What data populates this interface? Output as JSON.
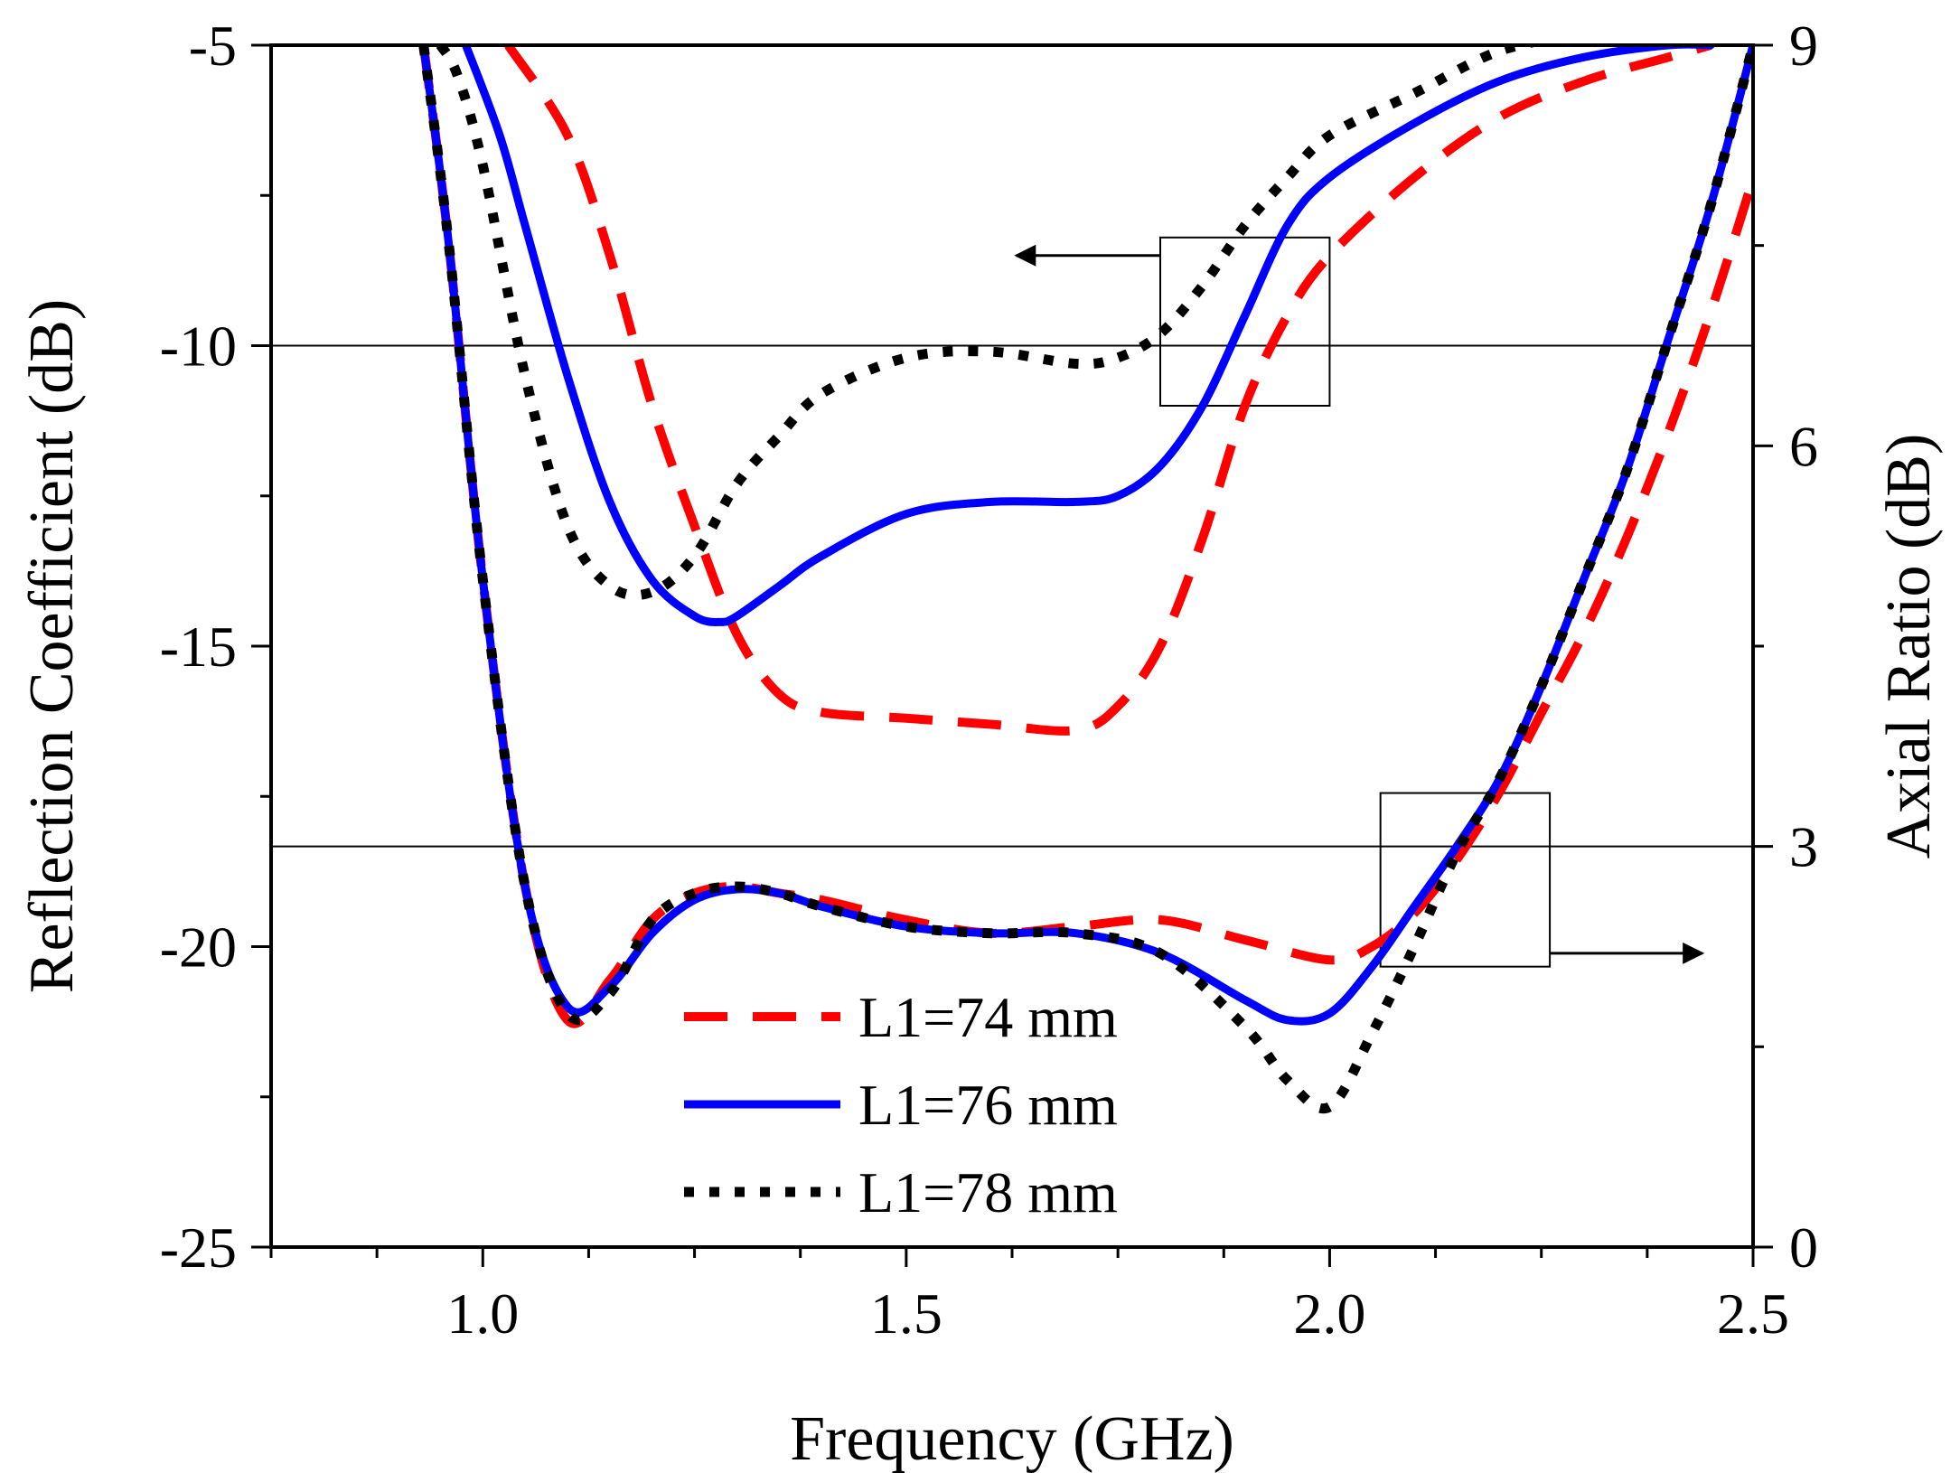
{
  "chart_data": {
    "type": "line",
    "title": "",
    "xlabel": "Frequency (GHz)",
    "ylabel_left": "Reflection Coefficient (dB)",
    "ylabel_right": "Axial Ratio (dB)",
    "xlim": [
      0.75,
      2.5
    ],
    "ylim_left": [
      -25,
      -5
    ],
    "ylim_right": [
      0,
      9
    ],
    "x_ticks": [
      1.0,
      1.5,
      2.0,
      2.5
    ],
    "x_tick_labels": [
      "1.0",
      "1.5",
      "2.0",
      "2.5"
    ],
    "y_left_ticks": [
      -5,
      -10,
      -15,
      -20,
      -25
    ],
    "y_left_tick_labels": [
      "-5",
      "-10",
      "-15",
      "-20",
      "-25"
    ],
    "y_right_ticks": [
      9,
      6,
      3,
      0
    ],
    "y_right_tick_labels": [
      "9",
      "6",
      "3",
      "0"
    ],
    "reference_lines": [
      {
        "axis": "left",
        "value": -10
      },
      {
        "axis": "right",
        "value": 3
      }
    ],
    "legend": {
      "placement": "bottom-center",
      "entries": [
        {
          "label": "L1=74 mm",
          "color": "#ff0000",
          "style": "dashed"
        },
        {
          "label": "L1=76 mm",
          "color": "#0000ff",
          "style": "solid"
        },
        {
          "label": "L1=78 mm",
          "color": "#000000",
          "style": "dotted"
        }
      ]
    },
    "annotations": [
      {
        "type": "box-arrow",
        "target_axis": "left",
        "direction": "left",
        "box_x": [
          1.8,
          2.0
        ],
        "box_y": [
          -11.0,
          -8.2
        ],
        "arrow_x": [
          1.8,
          1.63
        ],
        "arrow_y": -8.5
      },
      {
        "type": "box-arrow",
        "target_axis": "right",
        "direction": "right",
        "box_x": [
          2.06,
          2.26
        ],
        "box_y": [
          2.1,
          3.4
        ],
        "arrow_x": [
          2.26,
          2.44
        ],
        "arrow_y": 2.2
      }
    ],
    "series": [
      {
        "name": "L1=74 mm",
        "axis": "right",
        "color": "#ff0000",
        "style": "dashed",
        "x": [
          0.93,
          0.96,
          1.0,
          1.05,
          1.1,
          1.15,
          1.2,
          1.25,
          1.3,
          1.35,
          1.4,
          1.5,
          1.6,
          1.7,
          1.8,
          1.9,
          2.0,
          2.05,
          2.1,
          2.15,
          2.2,
          2.25,
          2.3,
          2.35,
          2.4,
          2.45,
          2.5
        ],
        "y": [
          9.0,
          7.5,
          5.0,
          2.7,
          1.7,
          2.0,
          2.45,
          2.65,
          2.7,
          2.65,
          2.6,
          2.45,
          2.35,
          2.4,
          2.45,
          2.3,
          2.15,
          2.25,
          2.5,
          2.9,
          3.4,
          4.0,
          4.6,
          5.3,
          6.1,
          7.0,
          8.0
        ]
      },
      {
        "name": "L1=76 mm",
        "axis": "right",
        "color": "#0000ff",
        "style": "solid",
        "x": [
          0.93,
          0.96,
          1.0,
          1.05,
          1.1,
          1.15,
          1.2,
          1.25,
          1.3,
          1.35,
          1.4,
          1.5,
          1.6,
          1.7,
          1.8,
          1.9,
          1.95,
          2.0,
          2.05,
          2.1,
          2.15,
          2.2,
          2.25,
          2.3,
          2.35,
          2.4,
          2.45,
          2.5
        ],
        "y": [
          9.0,
          7.5,
          5.0,
          2.7,
          1.8,
          1.95,
          2.35,
          2.6,
          2.68,
          2.65,
          2.55,
          2.4,
          2.35,
          2.35,
          2.2,
          1.85,
          1.7,
          1.75,
          2.1,
          2.55,
          3.0,
          3.5,
          4.2,
          5.0,
          5.8,
          6.8,
          7.8,
          9.0
        ]
      },
      {
        "name": "L1=78 mm",
        "axis": "right",
        "color": "#000000",
        "style": "dotted",
        "x": [
          0.93,
          0.96,
          1.0,
          1.05,
          1.1,
          1.15,
          1.2,
          1.25,
          1.3,
          1.35,
          1.4,
          1.5,
          1.6,
          1.7,
          1.8,
          1.9,
          1.95,
          2.0,
          2.05,
          2.1,
          2.15,
          2.2,
          2.25,
          2.3,
          2.35,
          2.4,
          2.45,
          2.5
        ],
        "y": [
          9.0,
          7.5,
          5.0,
          2.7,
          1.75,
          1.9,
          2.45,
          2.65,
          2.7,
          2.65,
          2.55,
          2.4,
          2.35,
          2.35,
          2.2,
          1.65,
          1.25,
          1.05,
          1.6,
          2.25,
          2.95,
          3.5,
          4.2,
          5.0,
          5.8,
          6.8,
          7.8,
          9.0
        ]
      },
      {
        "name": "L1=74 mm",
        "axis": "left",
        "color": "#ff0000",
        "style": "dashed",
        "x": [
          1.03,
          1.1,
          1.15,
          1.2,
          1.25,
          1.3,
          1.35,
          1.4,
          1.5,
          1.6,
          1.7,
          1.75,
          1.8,
          1.85,
          1.9,
          1.95,
          2.0,
          2.1,
          2.2,
          2.3,
          2.4,
          2.45
        ],
        "y": [
          -5.0,
          -6.5,
          -8.5,
          -11.0,
          -13.0,
          -14.8,
          -15.8,
          -16.1,
          -16.2,
          -16.3,
          -16.4,
          -16.0,
          -15.0,
          -13.2,
          -11.0,
          -9.5,
          -8.5,
          -7.2,
          -6.2,
          -5.6,
          -5.2,
          -5.0
        ]
      },
      {
        "name": "L1=76 mm",
        "axis": "left",
        "color": "#0000ff",
        "style": "solid",
        "x": [
          0.98,
          1.02,
          1.05,
          1.1,
          1.15,
          1.2,
          1.25,
          1.28,
          1.3,
          1.35,
          1.4,
          1.5,
          1.6,
          1.7,
          1.75,
          1.8,
          1.85,
          1.9,
          1.95,
          2.0,
          2.1,
          2.2,
          2.3,
          2.4,
          2.45
        ],
        "y": [
          -5.0,
          -6.5,
          -8.0,
          -10.5,
          -12.6,
          -13.9,
          -14.5,
          -14.6,
          -14.5,
          -14.0,
          -13.5,
          -12.8,
          -12.6,
          -12.6,
          -12.5,
          -12.0,
          -11.0,
          -9.5,
          -8.0,
          -7.2,
          -6.3,
          -5.6,
          -5.2,
          -5.0,
          -5.0
        ]
      },
      {
        "name": "L1=78 mm",
        "axis": "left",
        "color": "#000000",
        "style": "dotted",
        "x": [
          0.95,
          0.97,
          1.0,
          1.05,
          1.1,
          1.15,
          1.2,
          1.25,
          1.3,
          1.35,
          1.4,
          1.5,
          1.6,
          1.7,
          1.75,
          1.8,
          1.85,
          1.9,
          1.95,
          2.0,
          2.1,
          2.2,
          2.3
        ],
        "y": [
          -5.0,
          -5.5,
          -7.0,
          -10.5,
          -13.0,
          -14.0,
          -14.1,
          -13.5,
          -12.3,
          -11.5,
          -10.8,
          -10.2,
          -10.1,
          -10.3,
          -10.2,
          -9.8,
          -9.0,
          -8.0,
          -7.2,
          -6.5,
          -5.8,
          -5.1,
          -4.8
        ]
      }
    ]
  }
}
